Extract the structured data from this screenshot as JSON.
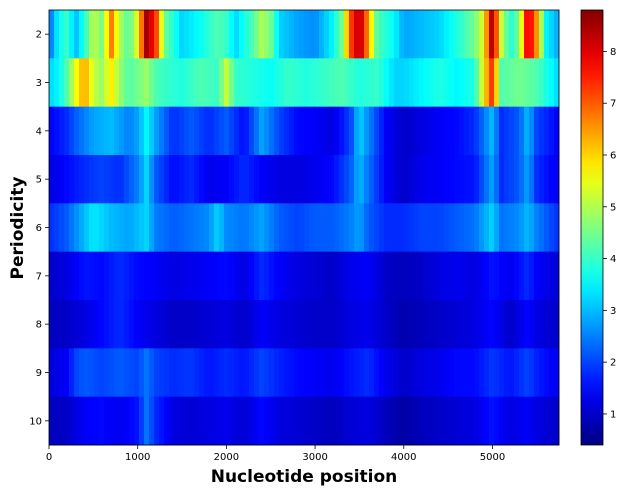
{
  "chart_data": {
    "type": "heatmap",
    "title": "",
    "xlabel": "Nucleotide position",
    "ylabel": "Periodicity",
    "xlim": [
      0,
      5750
    ],
    "x_ticks": [
      0,
      1000,
      2000,
      3000,
      4000,
      5000
    ],
    "x_tick_labels": [
      "0",
      "1000",
      "2000",
      "3000",
      "4000",
      "5000"
    ],
    "rows": [
      2,
      3,
      4,
      5,
      6,
      7,
      8,
      9,
      10
    ],
    "row_labels": [
      "2",
      "3",
      "4",
      "5",
      "6",
      "7",
      "8",
      "9",
      "10"
    ],
    "colorbar": {
      "colormap": "jet",
      "range": [
        0.4,
        8.8
      ],
      "ticks": [
        1,
        2,
        3,
        4,
        5,
        6,
        7,
        8
      ],
      "tick_labels": [
        "1",
        "2",
        "3",
        "4",
        "5",
        "6",
        "7",
        "8"
      ]
    },
    "segments": [
      {
        "row": 2,
        "profile": [
          [
            0,
            2.2
          ],
          [
            100,
            3.5
          ],
          [
            200,
            4.0
          ],
          [
            300,
            3.0
          ],
          [
            400,
            3.8
          ],
          [
            500,
            5.2
          ],
          [
            600,
            4.5
          ],
          [
            700,
            6.8
          ],
          [
            800,
            5.0
          ],
          [
            900,
            4.2
          ],
          [
            1000,
            5.5
          ],
          [
            1100,
            8.5
          ],
          [
            1200,
            7.5
          ],
          [
            1300,
            4.5
          ],
          [
            1500,
            3.2
          ],
          [
            1700,
            3.6
          ],
          [
            1900,
            4.2
          ],
          [
            2000,
            4.0
          ],
          [
            2100,
            3.2
          ],
          [
            2300,
            4.2
          ],
          [
            2400,
            5.0
          ],
          [
            2500,
            4.5
          ],
          [
            2600,
            3.2
          ],
          [
            2800,
            2.8
          ],
          [
            3000,
            2.6
          ],
          [
            3200,
            3.5
          ],
          [
            3300,
            4.5
          ],
          [
            3400,
            7.2
          ],
          [
            3500,
            8.5
          ],
          [
            3600,
            6.5
          ],
          [
            3700,
            4.2
          ],
          [
            3900,
            3.5
          ],
          [
            4000,
            2.8
          ],
          [
            4200,
            3.0
          ],
          [
            4400,
            3.2
          ],
          [
            4600,
            3.8
          ],
          [
            4800,
            4.5
          ],
          [
            4900,
            5.5
          ],
          [
            5000,
            8.6
          ],
          [
            5100,
            5.2
          ],
          [
            5200,
            3.8
          ],
          [
            5300,
            4.5
          ],
          [
            5400,
            8.3
          ],
          [
            5500,
            6.5
          ],
          [
            5600,
            3.5
          ],
          [
            5750,
            2.8
          ]
        ]
      },
      {
        "row": 3,
        "profile": [
          [
            0,
            3.2
          ],
          [
            100,
            3.5
          ],
          [
            200,
            4.2
          ],
          [
            300,
            5.5
          ],
          [
            400,
            6.5
          ],
          [
            500,
            5.2
          ],
          [
            600,
            4.8
          ],
          [
            700,
            5.8
          ],
          [
            800,
            4.8
          ],
          [
            900,
            4.2
          ],
          [
            1000,
            4.5
          ],
          [
            1100,
            4.8
          ],
          [
            1200,
            4.2
          ],
          [
            1300,
            4.0
          ],
          [
            1500,
            3.8
          ],
          [
            1700,
            4.2
          ],
          [
            1900,
            4.0
          ],
          [
            2000,
            5.2
          ],
          [
            2100,
            4.0
          ],
          [
            2300,
            3.8
          ],
          [
            2500,
            3.6
          ],
          [
            2700,
            4.0
          ],
          [
            2900,
            3.8
          ],
          [
            3100,
            4.0
          ],
          [
            3300,
            4.2
          ],
          [
            3500,
            3.8
          ],
          [
            3700,
            4.0
          ],
          [
            3900,
            3.2
          ],
          [
            4000,
            3.2
          ],
          [
            4200,
            3.5
          ],
          [
            4400,
            3.8
          ],
          [
            4600,
            3.5
          ],
          [
            4800,
            3.8
          ],
          [
            5000,
            7.5
          ],
          [
            5100,
            4.2
          ],
          [
            5300,
            4.5
          ],
          [
            5500,
            4.2
          ],
          [
            5600,
            3.8
          ],
          [
            5750,
            3.2
          ]
        ]
      },
      {
        "row": 4,
        "profile": [
          [
            0,
            1.4
          ],
          [
            200,
            1.8
          ],
          [
            300,
            2.2
          ],
          [
            500,
            2.8
          ],
          [
            700,
            3.0
          ],
          [
            900,
            2.5
          ],
          [
            1000,
            2.8
          ],
          [
            1100,
            3.5
          ],
          [
            1200,
            2.8
          ],
          [
            1400,
            1.8
          ],
          [
            1600,
            2.2
          ],
          [
            1800,
            1.8
          ],
          [
            2000,
            2.2
          ],
          [
            2200,
            1.5
          ],
          [
            2400,
            2.8
          ],
          [
            2600,
            2.0
          ],
          [
            2800,
            1.5
          ],
          [
            3000,
            1.4
          ],
          [
            3200,
            1.2
          ],
          [
            3400,
            2.0
          ],
          [
            3500,
            3.2
          ],
          [
            3600,
            2.6
          ],
          [
            3800,
            1.4
          ],
          [
            4000,
            1.0
          ],
          [
            4200,
            1.2
          ],
          [
            4400,
            1.4
          ],
          [
            4600,
            1.5
          ],
          [
            4800,
            1.8
          ],
          [
            5000,
            3.0
          ],
          [
            5100,
            1.8
          ],
          [
            5300,
            2.2
          ],
          [
            5400,
            3.0
          ],
          [
            5500,
            2.0
          ],
          [
            5750,
            1.4
          ]
        ]
      },
      {
        "row": 5,
        "profile": [
          [
            0,
            1.2
          ],
          [
            200,
            1.5
          ],
          [
            400,
            1.8
          ],
          [
            600,
            2.0
          ],
          [
            800,
            1.8
          ],
          [
            1000,
            2.5
          ],
          [
            1100,
            3.2
          ],
          [
            1200,
            2.2
          ],
          [
            1400,
            1.5
          ],
          [
            1600,
            1.8
          ],
          [
            1800,
            1.3
          ],
          [
            2000,
            1.4
          ],
          [
            2200,
            1.8
          ],
          [
            2400,
            1.4
          ],
          [
            2600,
            1.2
          ],
          [
            2800,
            1.2
          ],
          [
            3000,
            1.3
          ],
          [
            3200,
            1.5
          ],
          [
            3400,
            2.2
          ],
          [
            3500,
            3.0
          ],
          [
            3600,
            2.4
          ],
          [
            3800,
            1.4
          ],
          [
            4000,
            1.0
          ],
          [
            4200,
            1.3
          ],
          [
            4400,
            1.4
          ],
          [
            4600,
            1.5
          ],
          [
            4800,
            1.6
          ],
          [
            5000,
            2.8
          ],
          [
            5100,
            1.8
          ],
          [
            5300,
            2.2
          ],
          [
            5400,
            2.8
          ],
          [
            5500,
            1.8
          ],
          [
            5750,
            1.3
          ]
        ]
      },
      {
        "row": 6,
        "profile": [
          [
            0,
            1.8
          ],
          [
            200,
            2.2
          ],
          [
            400,
            3.0
          ],
          [
            500,
            3.4
          ],
          [
            700,
            3.0
          ],
          [
            900,
            2.8
          ],
          [
            1100,
            3.2
          ],
          [
            1200,
            2.5
          ],
          [
            1400,
            2.2
          ],
          [
            1600,
            2.4
          ],
          [
            1800,
            2.6
          ],
          [
            1900,
            3.2
          ],
          [
            2000,
            2.6
          ],
          [
            2200,
            2.4
          ],
          [
            2400,
            2.8
          ],
          [
            2600,
            2.2
          ],
          [
            2800,
            2.0
          ],
          [
            3000,
            2.2
          ],
          [
            3200,
            2.2
          ],
          [
            3400,
            2.5
          ],
          [
            3500,
            2.8
          ],
          [
            3600,
            2.2
          ],
          [
            3800,
            1.8
          ],
          [
            4000,
            1.8
          ],
          [
            4200,
            2.0
          ],
          [
            4400,
            2.0
          ],
          [
            4600,
            2.2
          ],
          [
            4800,
            2.4
          ],
          [
            5000,
            3.2
          ],
          [
            5100,
            2.4
          ],
          [
            5300,
            2.6
          ],
          [
            5400,
            3.0
          ],
          [
            5500,
            2.5
          ],
          [
            5750,
            1.8
          ]
        ]
      },
      {
        "row": 7,
        "profile": [
          [
            0,
            1.0
          ],
          [
            200,
            1.2
          ],
          [
            400,
            1.6
          ],
          [
            600,
            1.5
          ],
          [
            800,
            1.8
          ],
          [
            1000,
            1.5
          ],
          [
            1200,
            1.4
          ],
          [
            1400,
            1.2
          ],
          [
            1600,
            1.3
          ],
          [
            1800,
            1.4
          ],
          [
            2000,
            1.5
          ],
          [
            2200,
            1.2
          ],
          [
            2400,
            1.8
          ],
          [
            2600,
            1.4
          ],
          [
            2800,
            1.2
          ],
          [
            3000,
            1.1
          ],
          [
            3200,
            1.0
          ],
          [
            3400,
            1.3
          ],
          [
            3600,
            1.4
          ],
          [
            3800,
            1.0
          ],
          [
            4000,
            0.9
          ],
          [
            4200,
            1.0
          ],
          [
            4400,
            1.2
          ],
          [
            4600,
            1.3
          ],
          [
            4800,
            1.2
          ],
          [
            5000,
            1.6
          ],
          [
            5200,
            1.3
          ],
          [
            5400,
            1.8
          ],
          [
            5500,
            1.4
          ],
          [
            5750,
            1.1
          ]
        ]
      },
      {
        "row": 8,
        "profile": [
          [
            0,
            0.9
          ],
          [
            200,
            1.0
          ],
          [
            400,
            1.2
          ],
          [
            600,
            1.5
          ],
          [
            800,
            1.8
          ],
          [
            1000,
            1.4
          ],
          [
            1200,
            1.2
          ],
          [
            1400,
            1.0
          ],
          [
            1600,
            1.0
          ],
          [
            1800,
            1.1
          ],
          [
            2000,
            1.2
          ],
          [
            2200,
            1.0
          ],
          [
            2400,
            1.4
          ],
          [
            2600,
            1.2
          ],
          [
            2800,
            1.1
          ],
          [
            3000,
            1.0
          ],
          [
            3200,
            1.0
          ],
          [
            3400,
            1.2
          ],
          [
            3600,
            1.3
          ],
          [
            3800,
            1.0
          ],
          [
            4000,
            0.8
          ],
          [
            4200,
            0.9
          ],
          [
            4400,
            1.0
          ],
          [
            4600,
            1.1
          ],
          [
            4800,
            1.2
          ],
          [
            5000,
            1.5
          ],
          [
            5200,
            1.0
          ],
          [
            5400,
            1.5
          ],
          [
            5500,
            1.2
          ],
          [
            5750,
            1.0
          ]
        ]
      },
      {
        "row": 9,
        "profile": [
          [
            0,
            1.1
          ],
          [
            200,
            1.4
          ],
          [
            300,
            2.0
          ],
          [
            400,
            2.2
          ],
          [
            600,
            2.0
          ],
          [
            800,
            2.2
          ],
          [
            1000,
            2.0
          ],
          [
            1100,
            2.4
          ],
          [
            1200,
            2.0
          ],
          [
            1400,
            1.8
          ],
          [
            1600,
            1.9
          ],
          [
            1800,
            1.6
          ],
          [
            2000,
            1.8
          ],
          [
            2200,
            1.6
          ],
          [
            2400,
            2.0
          ],
          [
            2600,
            1.7
          ],
          [
            2800,
            1.5
          ],
          [
            3000,
            1.4
          ],
          [
            3200,
            1.3
          ],
          [
            3400,
            1.6
          ],
          [
            3600,
            1.8
          ],
          [
            3800,
            1.3
          ],
          [
            4000,
            1.0
          ],
          [
            4200,
            1.2
          ],
          [
            4400,
            1.3
          ],
          [
            4600,
            1.5
          ],
          [
            4800,
            1.5
          ],
          [
            5000,
            1.9
          ],
          [
            5200,
            1.6
          ],
          [
            5400,
            2.0
          ],
          [
            5500,
            1.7
          ],
          [
            5750,
            1.3
          ]
        ]
      },
      {
        "row": 10,
        "profile": [
          [
            0,
            0.9
          ],
          [
            200,
            1.0
          ],
          [
            400,
            1.4
          ],
          [
            600,
            1.5
          ],
          [
            800,
            1.3
          ],
          [
            1000,
            1.6
          ],
          [
            1100,
            2.4
          ],
          [
            1200,
            1.8
          ],
          [
            1400,
            1.2
          ],
          [
            1600,
            1.1
          ],
          [
            1800,
            1.2
          ],
          [
            2000,
            1.3
          ],
          [
            2200,
            1.1
          ],
          [
            2400,
            1.5
          ],
          [
            2600,
            1.2
          ],
          [
            2800,
            1.1
          ],
          [
            3000,
            1.0
          ],
          [
            3200,
            0.9
          ],
          [
            3400,
            1.1
          ],
          [
            3600,
            1.2
          ],
          [
            3800,
            0.9
          ],
          [
            4000,
            0.7
          ],
          [
            4200,
            0.9
          ],
          [
            4400,
            1.0
          ],
          [
            4600,
            1.1
          ],
          [
            4800,
            1.2
          ],
          [
            5000,
            1.6
          ],
          [
            5200,
            1.2
          ],
          [
            5400,
            1.4
          ],
          [
            5500,
            1.2
          ],
          [
            5750,
            1.0
          ]
        ]
      }
    ]
  }
}
